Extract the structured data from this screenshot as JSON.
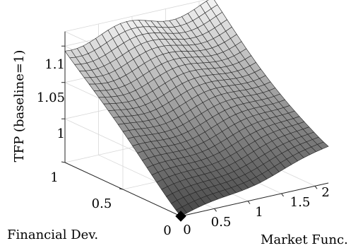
{
  "chart_data": {
    "type": "surface3d",
    "zlabel": "TFP (baseline=1)",
    "xlabel": "Market Func.",
    "ylabel": "Financial Dev.",
    "x_range": [
      0,
      2.2
    ],
    "y_range": [
      0,
      1
    ],
    "zlim": [
      0.94,
      1.12
    ],
    "x_ticks": [
      "0",
      "0.5",
      "1",
      "1.5",
      "2"
    ],
    "y_ticks": [
      "0",
      "0.5",
      "1"
    ],
    "z_ticks": [
      "1",
      "1.05",
      "1.1"
    ],
    "grid": true,
    "colormap": "gray",
    "marked_point": {
      "x": 0,
      "y": 0,
      "z": 0.94
    },
    "surface_description": "TFP rises with financial development and market functioning; minimum at origin",
    "corner_values": {
      "x0_y0": 0.94,
      "x2.2_y0": 0.965,
      "x0_y1": 1.1,
      "x2.2_y1": 1.115
    }
  }
}
